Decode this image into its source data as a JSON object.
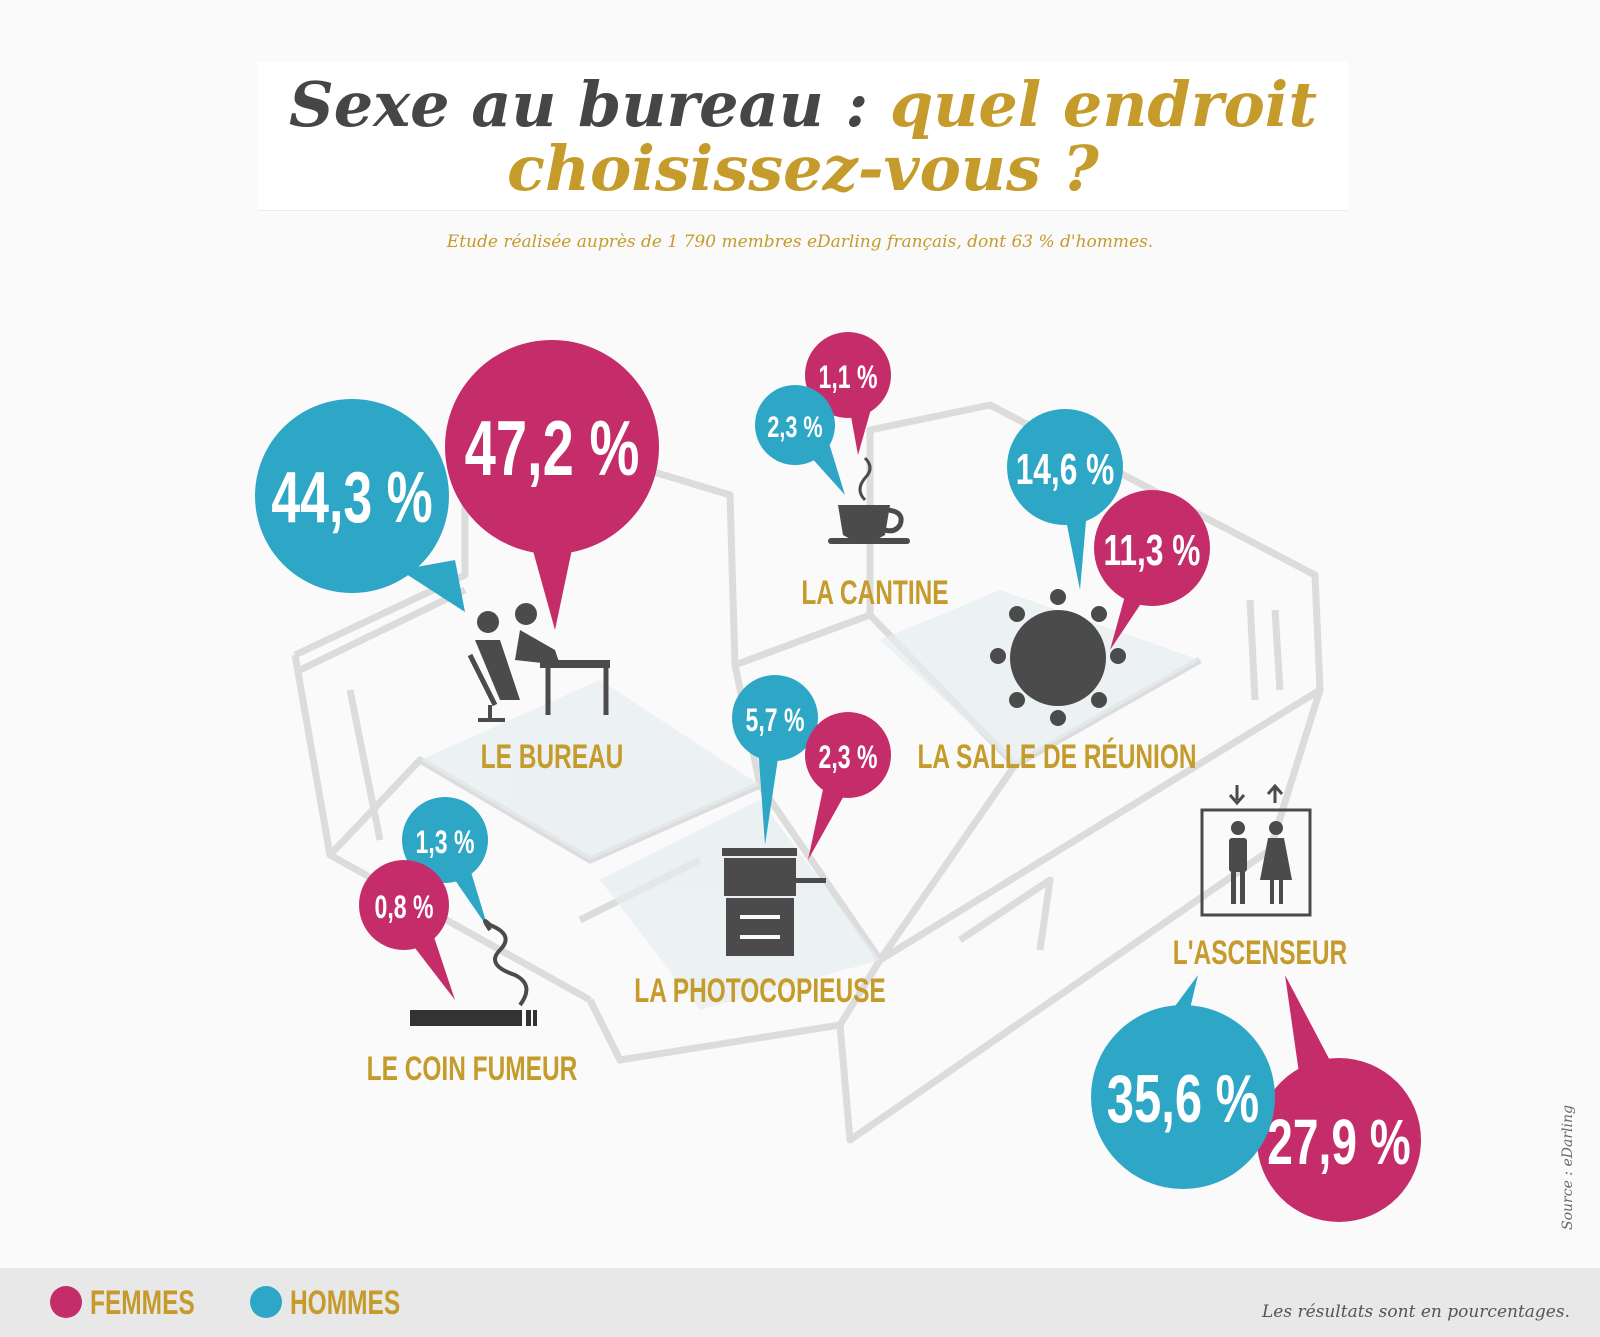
{
  "title": {
    "part1": "Sexe au bureau :",
    "part2": "quel endroit",
    "line2": "choisissez-vous ?"
  },
  "subtitle": "Etude réalisée auprès de 1 790 membres eDarling français, dont 63 % d'hommes.",
  "colors": {
    "femmes": "#c52d6a",
    "hommes": "#2ea6c6",
    "gold": "#c59b2b",
    "dark": "#464646"
  },
  "places": [
    {
      "name": "LE BUREAU",
      "hommes": "44,3 %",
      "femmes": "47,2 %",
      "icon": "couple-desk-icon"
    },
    {
      "name": "LA CANTINE",
      "hommes": "2,3 %",
      "femmes": "1,1 %",
      "icon": "coffee-cup-icon"
    },
    {
      "name": "LA SALLE DE RÉUNION",
      "hommes": "14,6 %",
      "femmes": "11,3 %",
      "icon": "meeting-table-icon"
    },
    {
      "name": "LA PHOTOCOPIEUSE",
      "hommes": "5,7 %",
      "femmes": "2,3 %",
      "icon": "photocopier-icon"
    },
    {
      "name": "LE COIN FUMEUR",
      "hommes": "1,3 %",
      "femmes": "0,8 %",
      "icon": "cigarette-icon"
    },
    {
      "name": "L'ASCENSEUR",
      "hommes": "35,6 %",
      "femmes": "27,9 %",
      "icon": "elevator-icon"
    }
  ],
  "legend": {
    "femmes": "FEMMES",
    "hommes": "HOMMES"
  },
  "footnote": "Les résultats sont en pourcentages.",
  "source": "Source : eDarling"
}
